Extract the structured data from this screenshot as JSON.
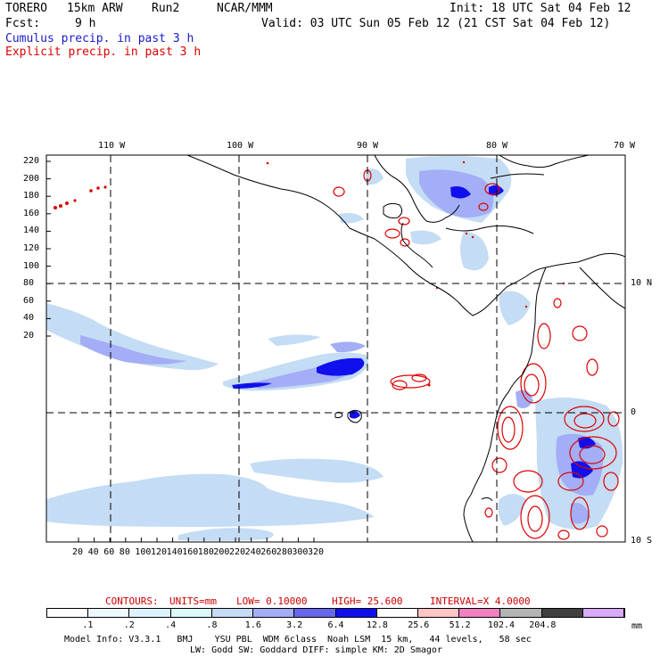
{
  "header": {
    "model": "TORERO",
    "resolution": "15km ARW",
    "run": "Run2",
    "org": "NCAR/MMM",
    "init": "Init: 18 UTC Sat 04 Feb 12",
    "fcst_label": "Fcst:",
    "fcst_value": "9 h",
    "valid": "Valid: 03 UTC Sun 05 Feb 12 (21 CST Sat 04 Feb 12)",
    "line1": "Cumulus precip. in past 3 h",
    "line2": "Explicit precip. in past 3 h",
    "line1_color": "#1a1acc",
    "line2_color": "#dd0000"
  },
  "map": {
    "lon_labels": [
      "110 W",
      "100 W",
      "90 W",
      "80 W",
      "70 W"
    ],
    "lat_labels": [
      "10 N",
      "0",
      "10 S"
    ],
    "y_ticks": [
      "220",
      "200",
      "180",
      "160",
      "140",
      "120",
      "100",
      "80",
      "60",
      "40",
      "20"
    ],
    "x_ticks": [
      "20",
      "40",
      "60",
      "80",
      "100",
      "120",
      "140",
      "160",
      "180",
      "200",
      "220",
      "240",
      "260",
      "280",
      "300",
      "320"
    ]
  },
  "contours": {
    "label": "CONTOURS:",
    "units": "UNITS=mm",
    "low": "LOW= 0.10000",
    "high": "HIGH= 25.600",
    "interval": "INTERVAL=X 4.0000",
    "color": "#cc0000"
  },
  "colorbar": {
    "labels": [
      ".1",
      ".2",
      ".4",
      ".8",
      "1.6",
      "3.2",
      "6.4",
      "12.8",
      "25.6",
      "51.2",
      "102.4",
      "204.8"
    ],
    "unit": "mm",
    "colors": [
      "#ffffff",
      "#eef8ff",
      "#ddf2ff",
      "#ddfafa",
      "#c4dcf4",
      "#a3aef6",
      "#6666ee",
      "#1010ee",
      "#ffffff",
      "#ffc4c4",
      "#f080c0",
      "#b4b4b4",
      "#404040",
      "#d8aaf8"
    ]
  },
  "footer": {
    "line1": "Model Info: V3.3.1   BMJ    YSU PBL  WDM 6class  Noah LSM  15 km,   44 levels,   58 sec",
    "line2": "LW: Godd SW: Goddard DIFF: simple KM: 2D Smagor"
  }
}
